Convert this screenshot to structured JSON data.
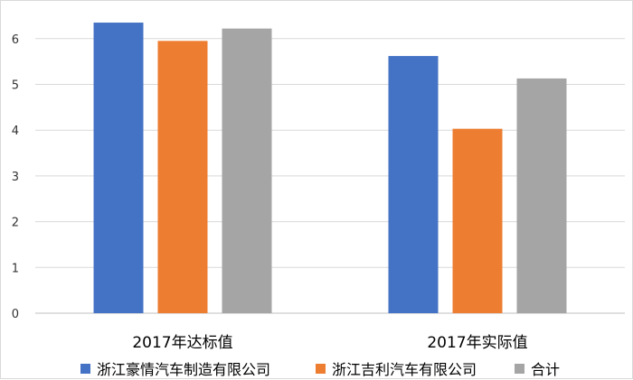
{
  "chart_data": {
    "type": "bar",
    "categories": [
      "2017年达标值",
      "2017年实际值"
    ],
    "series": [
      {
        "name": "浙江豪情汽车制造有限公司",
        "color": "#4472C4",
        "values": [
          6.35,
          5.62
        ]
      },
      {
        "name": "浙江吉利汽车有限公司",
        "color": "#ED7D31",
        "values": [
          5.95,
          4.03
        ]
      },
      {
        "name": "合计",
        "color": "#A5A5A5",
        "values": [
          6.22,
          5.13
        ]
      }
    ],
    "ylim": [
      0,
      7
    ],
    "yticks": [
      0,
      1,
      2,
      3,
      4,
      5,
      6
    ],
    "grid": true,
    "legend_position": "bottom",
    "title": "",
    "xlabel": "",
    "ylabel": ""
  }
}
